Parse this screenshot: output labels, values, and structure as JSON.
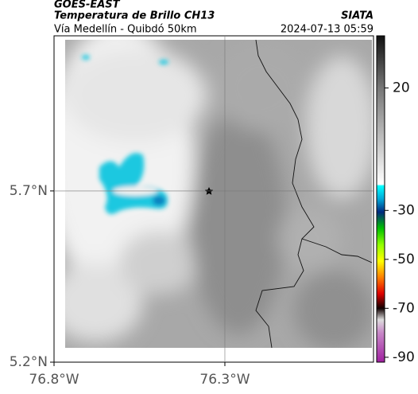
{
  "header": {
    "title": "GOES-EAST",
    "subtitle": "Temperatura de Brillo CH13",
    "credit": "SIATA",
    "route": "Vía Medellín - Quibdó 50km",
    "timestamp": "2024-07-13 05:59"
  },
  "map": {
    "lat_range": [
      5.2,
      6.153
    ],
    "lon_range": [
      -76.8,
      -75.865
    ],
    "lat_ticks": [
      {
        "value": 5.7,
        "label": "5.7°N"
      },
      {
        "value": 5.2,
        "label": "5.2°N"
      }
    ],
    "lon_ticks": [
      {
        "value": -76.8,
        "label": "76.8°W"
      },
      {
        "value": -76.3,
        "label": "76.3°W"
      }
    ]
  },
  "colorbar": {
    "range": [
      -92,
      41.3
    ],
    "ticks": [
      20,
      -30,
      -50,
      -70,
      -90
    ]
  }
}
